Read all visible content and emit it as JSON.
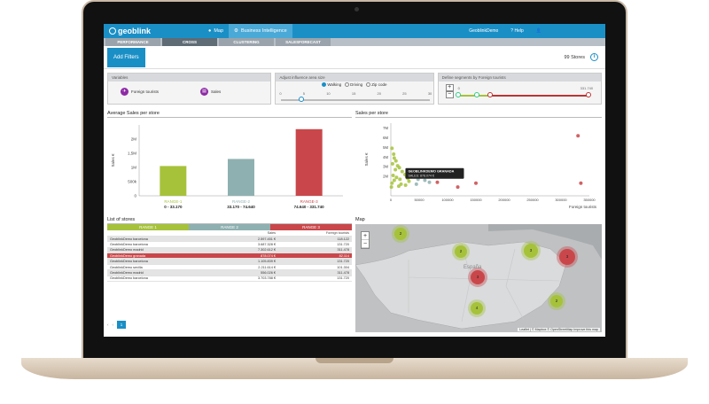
{
  "app": {
    "logo": "geoblink"
  },
  "topnav": [
    {
      "label": "Map",
      "icon": "globe-icon"
    },
    {
      "label": "Business Intelligence",
      "icon": "gears-icon"
    }
  ],
  "topright": {
    "user": "GeoblinkDemo",
    "help": "Help",
    "icon": "user-icon"
  },
  "subtabs": [
    "PERFORMANCE",
    "CROSS",
    "CLUSTERING",
    "SALESFORECAST"
  ],
  "filterbar": {
    "add_filters": "Add Filters",
    "stores": "99 Stores"
  },
  "panels": {
    "variables": {
      "title": "Variables",
      "chip1": "Foreign tourists",
      "chip2": "Sales"
    },
    "influence": {
      "title": "Adjust influence area size",
      "modes": [
        "Walking",
        "Driving",
        "Zip code"
      ],
      "ticks": [
        "0",
        "5",
        "10",
        "15",
        "20",
        "25",
        "30"
      ]
    },
    "segments": {
      "title": "Define segments by Foreign tourists",
      "min": "0",
      "max": "331.740"
    }
  },
  "bar_section": {
    "title": "Average Sales per store"
  },
  "scatter_section": {
    "title": "Sales per store"
  },
  "list_section": {
    "title": "List of stores"
  },
  "map_section": {
    "title": "Map"
  },
  "chart_data": [
    {
      "type": "bar",
      "title": "Average Sales per store",
      "ylabel": "Sales €",
      "xlabel": "",
      "ylim": [
        0,
        2500000
      ],
      "yticks": [
        "0",
        "500k",
        "1M",
        "1,5M",
        "2M"
      ],
      "categories": [
        "RANGE-1",
        "RANGE-2",
        "RANGE-3"
      ],
      "ranges": [
        "0 - 33.170",
        "33.170 - 74.640",
        "74.640 - 331.740"
      ],
      "values": [
        1050000,
        1300000,
        2350000
      ],
      "colors": [
        "#a6c23a",
        "#8fb0b0",
        "#c9474a"
      ]
    },
    {
      "type": "scatter",
      "title": "Sales per store",
      "ylabel": "Sales €",
      "xlabel": "Foreign tourists",
      "xlim": [
        0,
        350000
      ],
      "ylim": [
        0,
        7500000
      ],
      "xticks": [
        "0",
        "50000",
        "100000",
        "150000",
        "200000",
        "250000",
        "300000",
        "350000"
      ],
      "yticks": [
        "2M",
        "3M",
        "4M",
        "5M",
        "6M",
        "7M"
      ],
      "tooltip": {
        "title": "GEOBLINKDEMO GRANADA",
        "value": "SALES: 878.074 €"
      },
      "series": [
        {
          "color": "#a6c23a",
          "points": [
            [
              2000,
              4900000
            ],
            [
              5000,
              4300000
            ],
            [
              6000,
              3900000
            ],
            [
              9000,
              3600000
            ],
            [
              3000,
              3300000
            ],
            [
              12000,
              3100000
            ],
            [
              15000,
              2900000
            ],
            [
              8000,
              2700000
            ],
            [
              20000,
              2500000
            ],
            [
              25000,
              2200000
            ],
            [
              4000,
              2100000
            ],
            [
              28000,
              2000000
            ],
            [
              10000,
              1900000
            ],
            [
              30000,
              1800000
            ],
            [
              16000,
              1700000
            ],
            [
              6000,
              1600000
            ],
            [
              32000,
              1500000
            ],
            [
              2000,
              1300000
            ],
            [
              18000,
              1200000
            ],
            [
              26000,
              1100000
            ],
            [
              1000,
              900000
            ],
            [
              14000,
              1000000
            ]
          ]
        },
        {
          "color": "#8fb0b0",
          "points": [
            [
              36000,
              2300000
            ],
            [
              42000,
              2000000
            ],
            [
              48000,
              1700000
            ],
            [
              55000,
              2100000
            ],
            [
              60000,
              1600000
            ],
            [
              68000,
              1400000
            ],
            [
              45000,
              1200000
            ]
          ]
        },
        {
          "color": "#c9474a",
          "points": [
            [
              82000,
              1400000
            ],
            [
              100000,
              2100000
            ],
            [
              150000,
              1300000
            ],
            [
              330000,
              6200000
            ],
            [
              335000,
              1300000
            ],
            [
              118000,
              900000
            ]
          ]
        }
      ]
    }
  ],
  "store_table": {
    "segments": [
      "RANGE 1",
      "RANGE 2",
      "RANGE 3"
    ],
    "columns": [
      "",
      "Sales",
      "Foreign tourists"
    ],
    "rows": [
      [
        "GeoblinkDemo barcelona",
        "2.597.451 €",
        "118.122"
      ],
      [
        "GeoblinkDemo barcelona",
        "3.687.328 €",
        "131.720"
      ],
      [
        "GeoblinkDemo madrid",
        "7.302.612 €",
        "311.478"
      ],
      [
        "GeoblinkDemo granada",
        "878.074 €",
        "82.114"
      ],
      [
        "GeoblinkDemo barcelona",
        "1.105.839 €",
        "131.720"
      ],
      [
        "GeoblinkDemo sevilla",
        "2.211.614 €",
        "101.304"
      ],
      [
        "GeoblinkDemo madrid",
        "556.026 €",
        "311.478"
      ],
      [
        "GeoblinkDemo barcelona",
        "3.703.788 €",
        "131.720"
      ]
    ],
    "page": "1"
  },
  "map": {
    "clusters": [
      {
        "label": "2",
        "color": "#a6c23a"
      },
      {
        "label": "2",
        "color": "#a6c23a"
      },
      {
        "label": "3",
        "color": "#a6c23a"
      },
      {
        "label": "3",
        "color": "#c9474a"
      },
      {
        "label": "4",
        "color": "#a6c23a"
      },
      {
        "label": "2",
        "color": "#a6c23a"
      },
      {
        "label": "3",
        "color": "#c9474a"
      }
    ],
    "region_label": "España",
    "attribution": "Leaflet | © Mapbox © OpenStreetMap Improve this map"
  }
}
